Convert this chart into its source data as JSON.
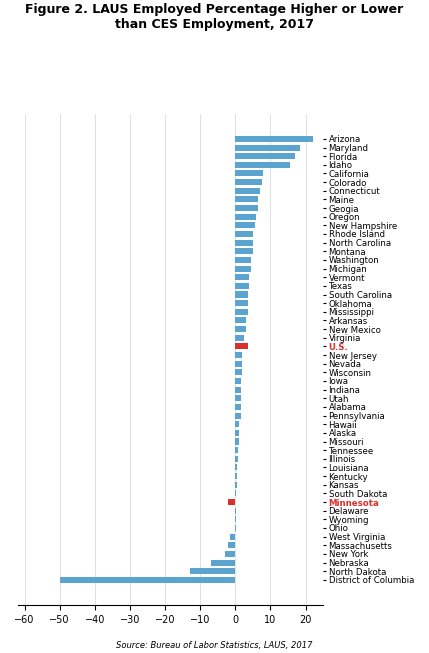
{
  "title": "Figure 2. LAUS Employed Percentage Higher or Lower\nthan CES Employment, 2017",
  "source": "Source: Bureau of Labor Statistics, LAUS, 2017",
  "categories": [
    "Arizona",
    "Maryland",
    "Florida",
    "Idaho",
    "California",
    "Colorado",
    "Connecticut",
    "Maine",
    "Geogia",
    "Oregon",
    "New Hampshire",
    "Rhode Island",
    "North Carolina",
    "Montana",
    "Washington",
    "Michigan",
    "Vermont",
    "Texas",
    "South Carolina",
    "Oklahoma",
    "Mississippi",
    "Arkansas",
    "New Mexico",
    "Virginia",
    "U.S.",
    "New Jersey",
    "Nevada",
    "Wisconsin",
    "Iowa",
    "Indiana",
    "Utah",
    "Alabama",
    "Pennsylvania",
    "Hawaii",
    "Alaska",
    "Missouri",
    "Tennessee",
    "Illinois",
    "Louisiana",
    "Kentucky",
    "Kansas",
    "South Dakota",
    "Minnesota",
    "Delaware",
    "Wyoming",
    "Ohio",
    "West Virginia",
    "Massachusetts",
    "New York",
    "Nebraska",
    "North Dakota",
    "District of Columbia"
  ],
  "values": [
    22.0,
    18.5,
    17.0,
    15.5,
    8.0,
    7.5,
    7.0,
    6.5,
    6.5,
    6.0,
    5.5,
    5.0,
    5.0,
    5.0,
    4.5,
    4.5,
    4.0,
    4.0,
    3.5,
    3.5,
    3.5,
    3.0,
    3.0,
    2.5,
    3.5,
    2.0,
    2.0,
    2.0,
    1.5,
    1.5,
    1.5,
    1.5,
    1.5,
    1.0,
    1.0,
    1.0,
    0.8,
    0.8,
    0.6,
    0.5,
    0.5,
    0.3,
    -2.0,
    0.2,
    0.1,
    0.1,
    -1.5,
    -2.0,
    -3.0,
    -7.0,
    -13.0,
    -50.0
  ],
  "bar_color_default": "#5BA4CF",
  "bar_color_highlight": "#D9302F",
  "highlight_labels": [
    "U.S.",
    "Minnesota"
  ],
  "xlim": [
    -62,
    25
  ],
  "xticks": [
    -60,
    -50,
    -40,
    -30,
    -20,
    -10,
    0,
    10,
    20
  ],
  "figsize": [
    4.29,
    6.53
  ],
  "dpi": 100
}
